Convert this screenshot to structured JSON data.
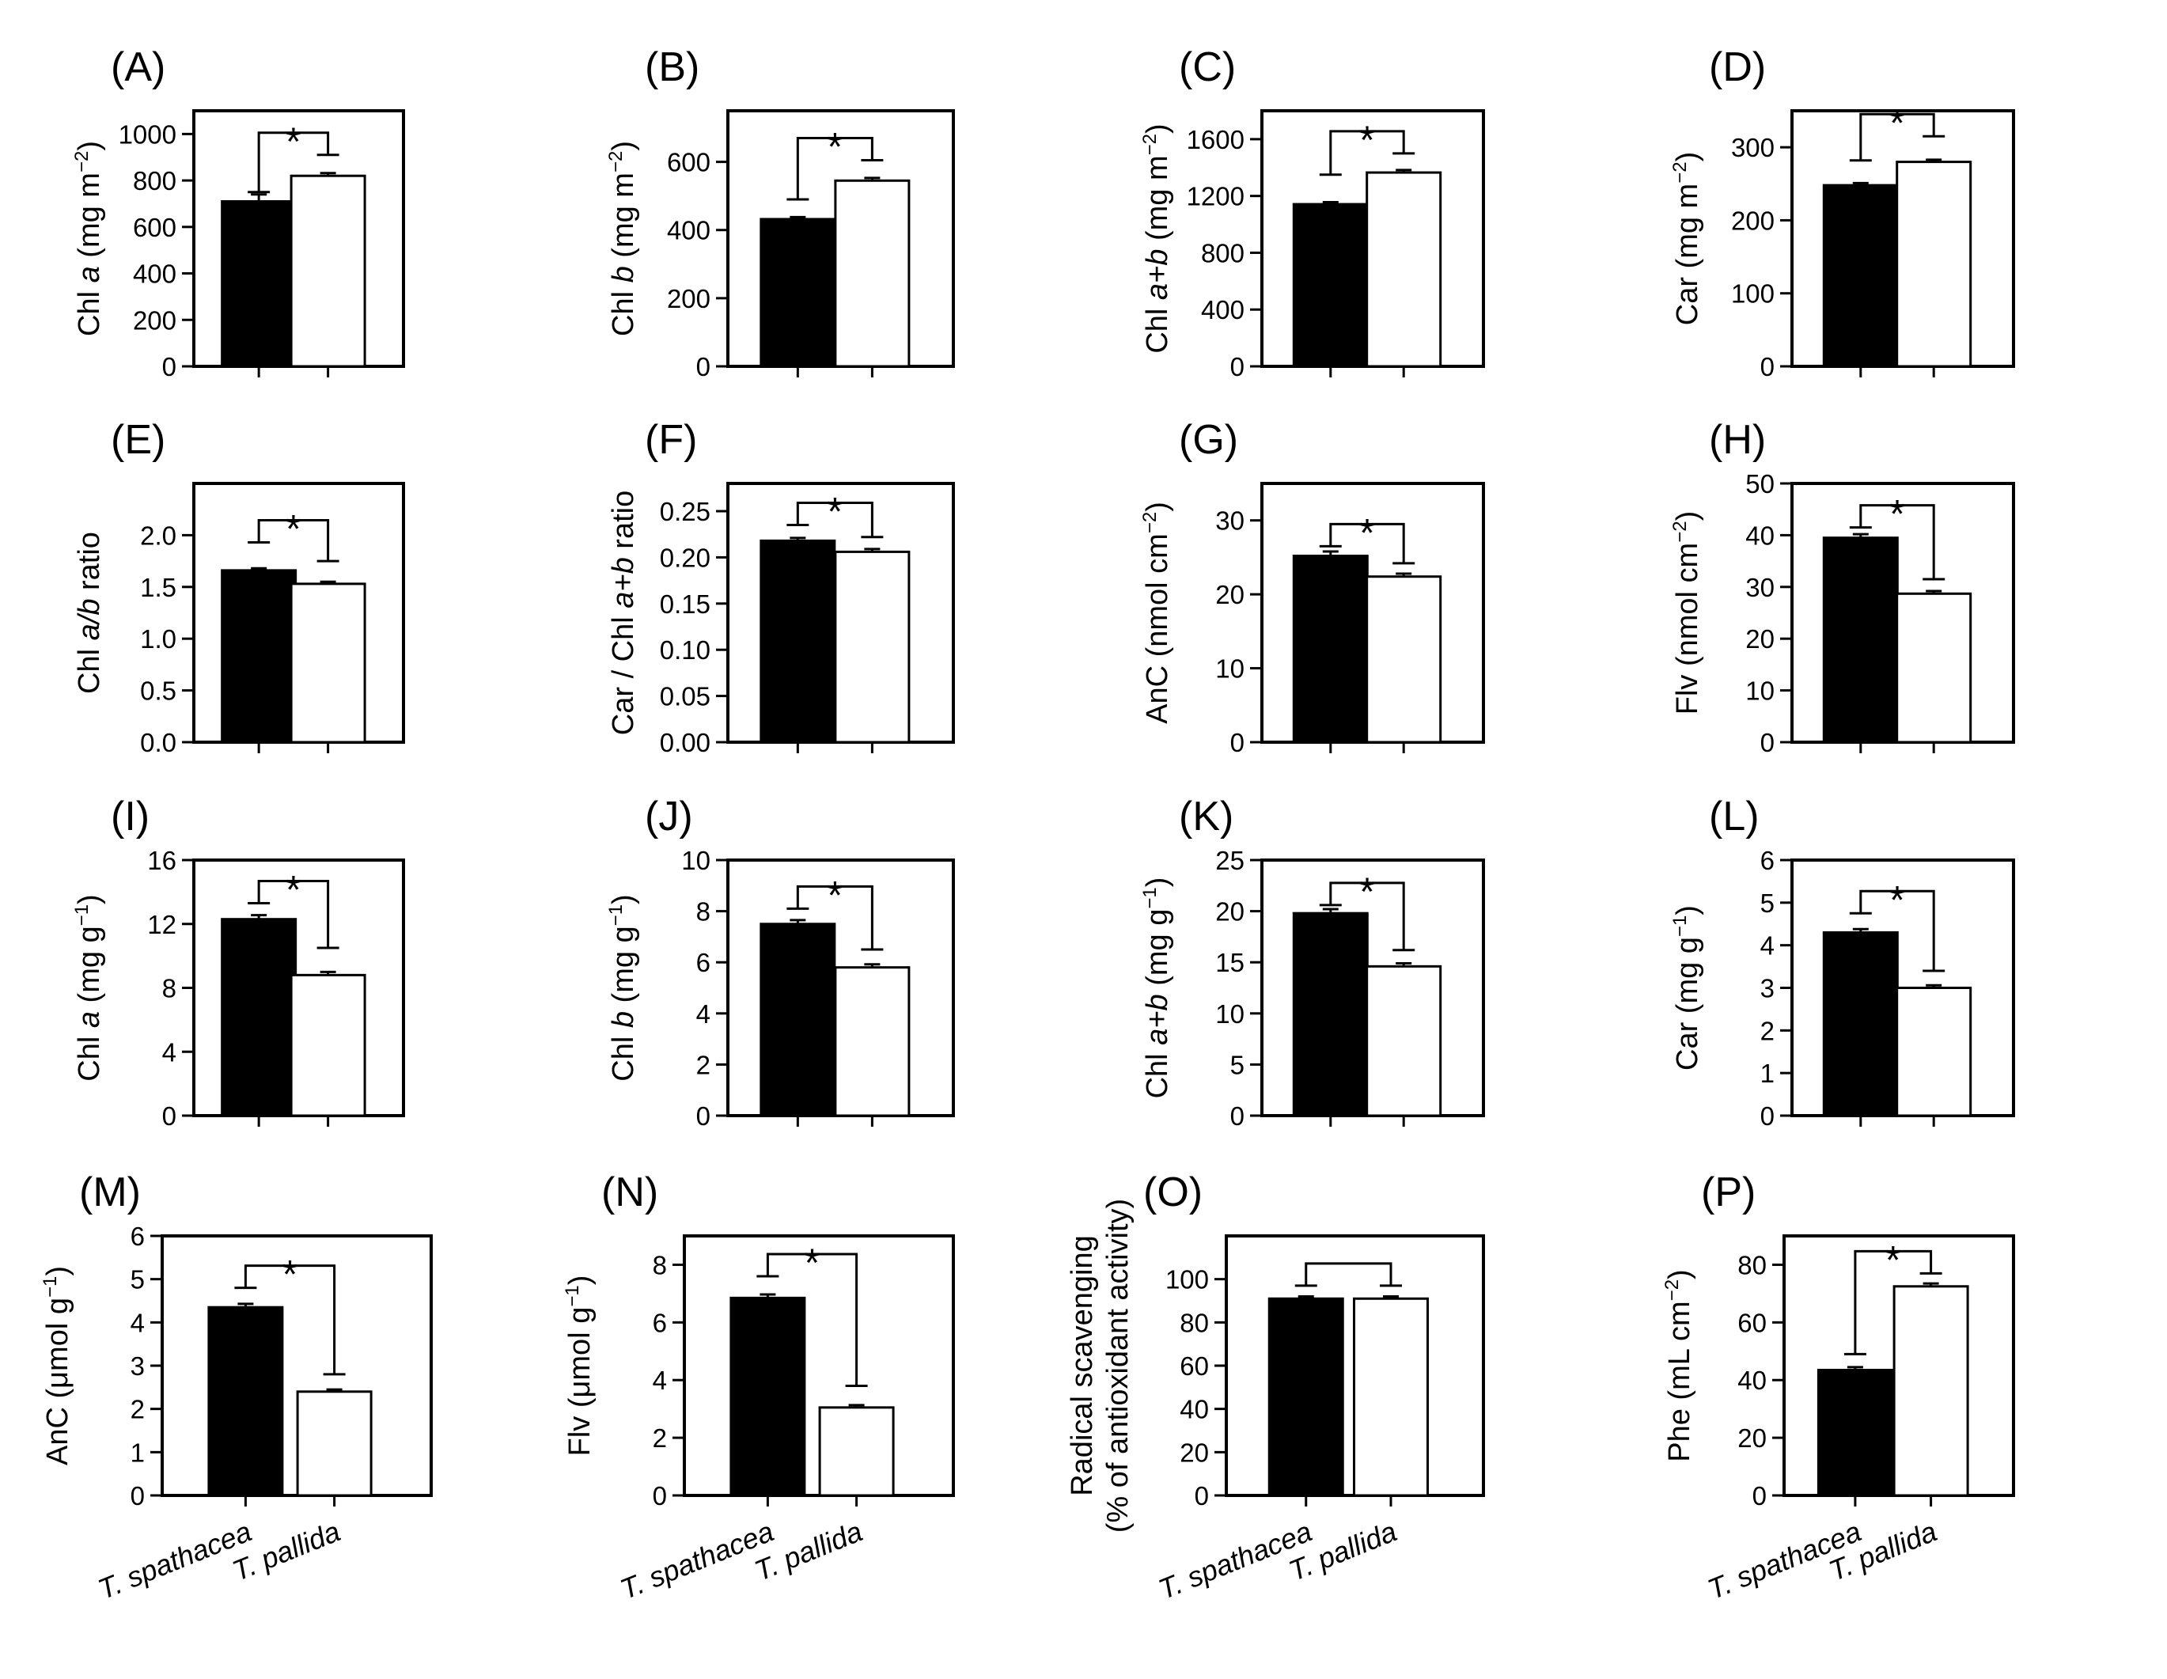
{
  "categories": [
    "T. spathacea",
    "T. pallida"
  ],
  "colors": {
    "dark_bar": "#000000",
    "light_bar": "#ffffff",
    "axis": "#000000"
  },
  "chart_data": [
    {
      "id": "A",
      "panel_label": "(A)",
      "type": "bar",
      "ylabel_parts": [
        "Chl ",
        "a",
        " (mg m",
        "−2",
        ")"
      ],
      "ylim": [
        0,
        1100
      ],
      "yticks": [
        0,
        200,
        400,
        600,
        800,
        1000
      ],
      "ytick_labels": [
        "0",
        "200",
        "400",
        "600",
        "800",
        "1000"
      ],
      "values": [
        710,
        820
      ],
      "errors": [
        30,
        12
      ],
      "significance": "*",
      "bracket_tops": [
        750,
        910
      ],
      "show_categories": false
    },
    {
      "id": "B",
      "panel_label": "(B)",
      "type": "bar",
      "ylabel_parts": [
        "Chl ",
        "b",
        " (mg m",
        "−2",
        ")"
      ],
      "ylim": [
        0,
        750
      ],
      "yticks": [
        0,
        200,
        400,
        600
      ],
      "ytick_labels": [
        "0",
        "200",
        "400",
        "600"
      ],
      "values": [
        432,
        545
      ],
      "errors": [
        6,
        8
      ],
      "significance": "*",
      "bracket_tops": [
        490,
        605
      ],
      "show_categories": false
    },
    {
      "id": "C",
      "panel_label": "(C)",
      "type": "bar",
      "ylabel_parts": [
        "Chl ",
        "a+b",
        " (mg m",
        "−2",
        ")"
      ],
      "ylim": [
        0,
        1800
      ],
      "yticks": [
        0,
        400,
        800,
        1200,
        1600
      ],
      "ytick_labels": [
        "0",
        "400",
        "800",
        "1200",
        "1600"
      ],
      "values": [
        1142,
        1365
      ],
      "errors": [
        14,
        18
      ],
      "significance": "*",
      "bracket_tops": [
        1350,
        1500
      ],
      "show_categories": false
    },
    {
      "id": "D",
      "panel_label": "(D)",
      "type": "bar",
      "ylabel_parts": [
        "Car (mg m",
        "−2",
        ")"
      ],
      "ylim": [
        0,
        350
      ],
      "yticks": [
        0,
        100,
        200,
        300
      ],
      "ytick_labels": [
        "0",
        "100",
        "200",
        "300"
      ],
      "values": [
        248,
        280
      ],
      "errors": [
        3,
        3
      ],
      "significance": "*",
      "bracket_tops": [
        282,
        315
      ],
      "show_categories": false
    },
    {
      "id": "E",
      "panel_label": "(E)",
      "type": "bar",
      "ylabel_parts": [
        "Chl ",
        "a/b",
        " ratio"
      ],
      "ylim": [
        0,
        2.5
      ],
      "yticks": [
        0,
        0.5,
        1.0,
        1.5,
        2.0
      ],
      "ytick_labels": [
        "0.0",
        "0.5",
        "1.0",
        "1.5",
        "2.0"
      ],
      "values": [
        1.66,
        1.53
      ],
      "errors": [
        0.02,
        0.02
      ],
      "significance": "*",
      "bracket_tops": [
        1.93,
        1.75
      ],
      "show_categories": false
    },
    {
      "id": "F",
      "panel_label": "(F)",
      "type": "bar",
      "ylabel_parts": [
        "Car / Chl ",
        "a+b",
        " ratio"
      ],
      "ylim": [
        0,
        0.28
      ],
      "yticks": [
        0,
        0.05,
        0.1,
        0.15,
        0.2,
        0.25
      ],
      "ytick_labels": [
        "0.00",
        "0.05",
        "0.10",
        "0.15",
        "0.20",
        "0.25"
      ],
      "values": [
        0.218,
        0.206
      ],
      "errors": [
        0.003,
        0.003
      ],
      "significance": "*",
      "bracket_tops": [
        0.235,
        0.222
      ],
      "show_categories": false
    },
    {
      "id": "G",
      "panel_label": "(G)",
      "type": "bar",
      "ylabel_parts": [
        "AnC (nmol cm",
        "−2",
        ")"
      ],
      "ylim": [
        0,
        35
      ],
      "yticks": [
        0,
        10,
        20,
        30
      ],
      "ytick_labels": [
        "0",
        "10",
        "20",
        "30"
      ],
      "values": [
        25.2,
        22.4
      ],
      "errors": [
        0.6,
        0.4
      ],
      "significance": "*",
      "bracket_tops": [
        26.5,
        24.2
      ],
      "show_categories": false
    },
    {
      "id": "H",
      "panel_label": "(H)",
      "type": "bar",
      "ylabel_parts": [
        "Flv (nmol cm",
        "−2",
        ")"
      ],
      "ylim": [
        0,
        50
      ],
      "yticks": [
        0,
        10,
        20,
        30,
        40,
        50
      ],
      "ytick_labels": [
        "0",
        "10",
        "20",
        "30",
        "40",
        "50"
      ],
      "values": [
        39.5,
        28.7
      ],
      "errors": [
        0.7,
        0.5
      ],
      "significance": "*",
      "bracket_tops": [
        41.5,
        31.5
      ],
      "show_categories": false
    },
    {
      "id": "I",
      "panel_label": "(I)",
      "type": "bar",
      "ylabel_parts": [
        "Chl ",
        "a",
        " (mg g",
        "−1",
        ")"
      ],
      "ylim": [
        0,
        16
      ],
      "yticks": [
        0,
        4,
        8,
        12,
        16
      ],
      "ytick_labels": [
        "0",
        "4",
        "8",
        "12",
        "16"
      ],
      "values": [
        12.3,
        8.8
      ],
      "errors": [
        0.25,
        0.2
      ],
      "significance": "*",
      "bracket_tops": [
        13.3,
        10.5
      ],
      "show_categories": false
    },
    {
      "id": "J",
      "panel_label": "(J)",
      "type": "bar",
      "ylabel_parts": [
        "Chl ",
        "b",
        " (mg g",
        "−1",
        ")"
      ],
      "ylim": [
        0,
        10
      ],
      "yticks": [
        0,
        2,
        4,
        6,
        8,
        10
      ],
      "ytick_labels": [
        "0",
        "2",
        "4",
        "6",
        "8",
        "10"
      ],
      "values": [
        7.5,
        5.8
      ],
      "errors": [
        0.15,
        0.12
      ],
      "significance": "*",
      "bracket_tops": [
        8.1,
        6.5
      ],
      "show_categories": false
    },
    {
      "id": "K",
      "panel_label": "(K)",
      "type": "bar",
      "ylabel_parts": [
        "Chl ",
        "a+b",
        " (mg g",
        "−1",
        ")"
      ],
      "ylim": [
        0,
        25
      ],
      "yticks": [
        0,
        5,
        10,
        15,
        20,
        25
      ],
      "ytick_labels": [
        "0",
        "5",
        "10",
        "15",
        "20",
        "25"
      ],
      "values": [
        19.8,
        14.6
      ],
      "errors": [
        0.4,
        0.3
      ],
      "significance": "*",
      "bracket_tops": [
        20.6,
        16.2
      ],
      "show_categories": false
    },
    {
      "id": "L",
      "panel_label": "(L)",
      "type": "bar",
      "ylabel_parts": [
        "Car (mg g",
        "−1",
        ")"
      ],
      "ylim": [
        0,
        6
      ],
      "yticks": [
        0,
        1,
        2,
        3,
        4,
        5,
        6
      ],
      "ytick_labels": [
        "0",
        "1",
        "2",
        "3",
        "4",
        "5",
        "6"
      ],
      "values": [
        4.3,
        3.0
      ],
      "errors": [
        0.08,
        0.06
      ],
      "significance": "*",
      "bracket_tops": [
        4.75,
        3.4
      ],
      "show_categories": false
    },
    {
      "id": "M",
      "panel_label": "(M)",
      "type": "bar",
      "ylabel_parts": [
        "AnC (",
        "μ",
        "mol g",
        "−1",
        ")"
      ],
      "ylim": [
        0,
        6
      ],
      "yticks": [
        0,
        1,
        2,
        3,
        4,
        5,
        6
      ],
      "ytick_labels": [
        "0",
        "1",
        "2",
        "3",
        "4",
        "5",
        "6"
      ],
      "values": [
        4.35,
        2.4
      ],
      "errors": [
        0.08,
        0.05
      ],
      "significance": "*",
      "bracket_tops": [
        4.8,
        2.8
      ],
      "show_categories": true
    },
    {
      "id": "N",
      "panel_label": "(N)",
      "type": "bar",
      "ylabel_parts": [
        "Flv (",
        "μ",
        "mol g",
        "−1",
        ")"
      ],
      "ylim": [
        0,
        9
      ],
      "yticks": [
        0,
        2,
        4,
        6,
        8
      ],
      "ytick_labels": [
        "0",
        "2",
        "4",
        "6",
        "8"
      ],
      "values": [
        6.85,
        3.05
      ],
      "errors": [
        0.12,
        0.08
      ],
      "significance": "*",
      "bracket_tops": [
        7.6,
        3.8
      ],
      "show_categories": true
    },
    {
      "id": "O",
      "panel_label": "(O)",
      "type": "bar",
      "ylabel_lines": [
        "Radical scavenging",
        "(% of antioxidant activity)"
      ],
      "ylim": [
        0,
        120
      ],
      "yticks": [
        0,
        20,
        40,
        60,
        80,
        100
      ],
      "ytick_labels": [
        "0",
        "20",
        "40",
        "60",
        "80",
        "100"
      ],
      "values": [
        91,
        91
      ],
      "errors": [
        1,
        1
      ],
      "significance": "",
      "bracket_tops": [
        97,
        97
      ],
      "show_categories": true
    },
    {
      "id": "P",
      "panel_label": "(P)",
      "type": "bar",
      "ylabel_parts": [
        "Phe (mL cm",
        "−2",
        ")"
      ],
      "ylim": [
        0,
        90
      ],
      "yticks": [
        0,
        20,
        40,
        60,
        80
      ],
      "ytick_labels": [
        "0",
        "20",
        "40",
        "60",
        "80"
      ],
      "values": [
        43.5,
        72.5
      ],
      "errors": [
        1,
        1
      ],
      "significance": "*",
      "bracket_tops": [
        49,
        77
      ],
      "show_categories": true
    }
  ]
}
